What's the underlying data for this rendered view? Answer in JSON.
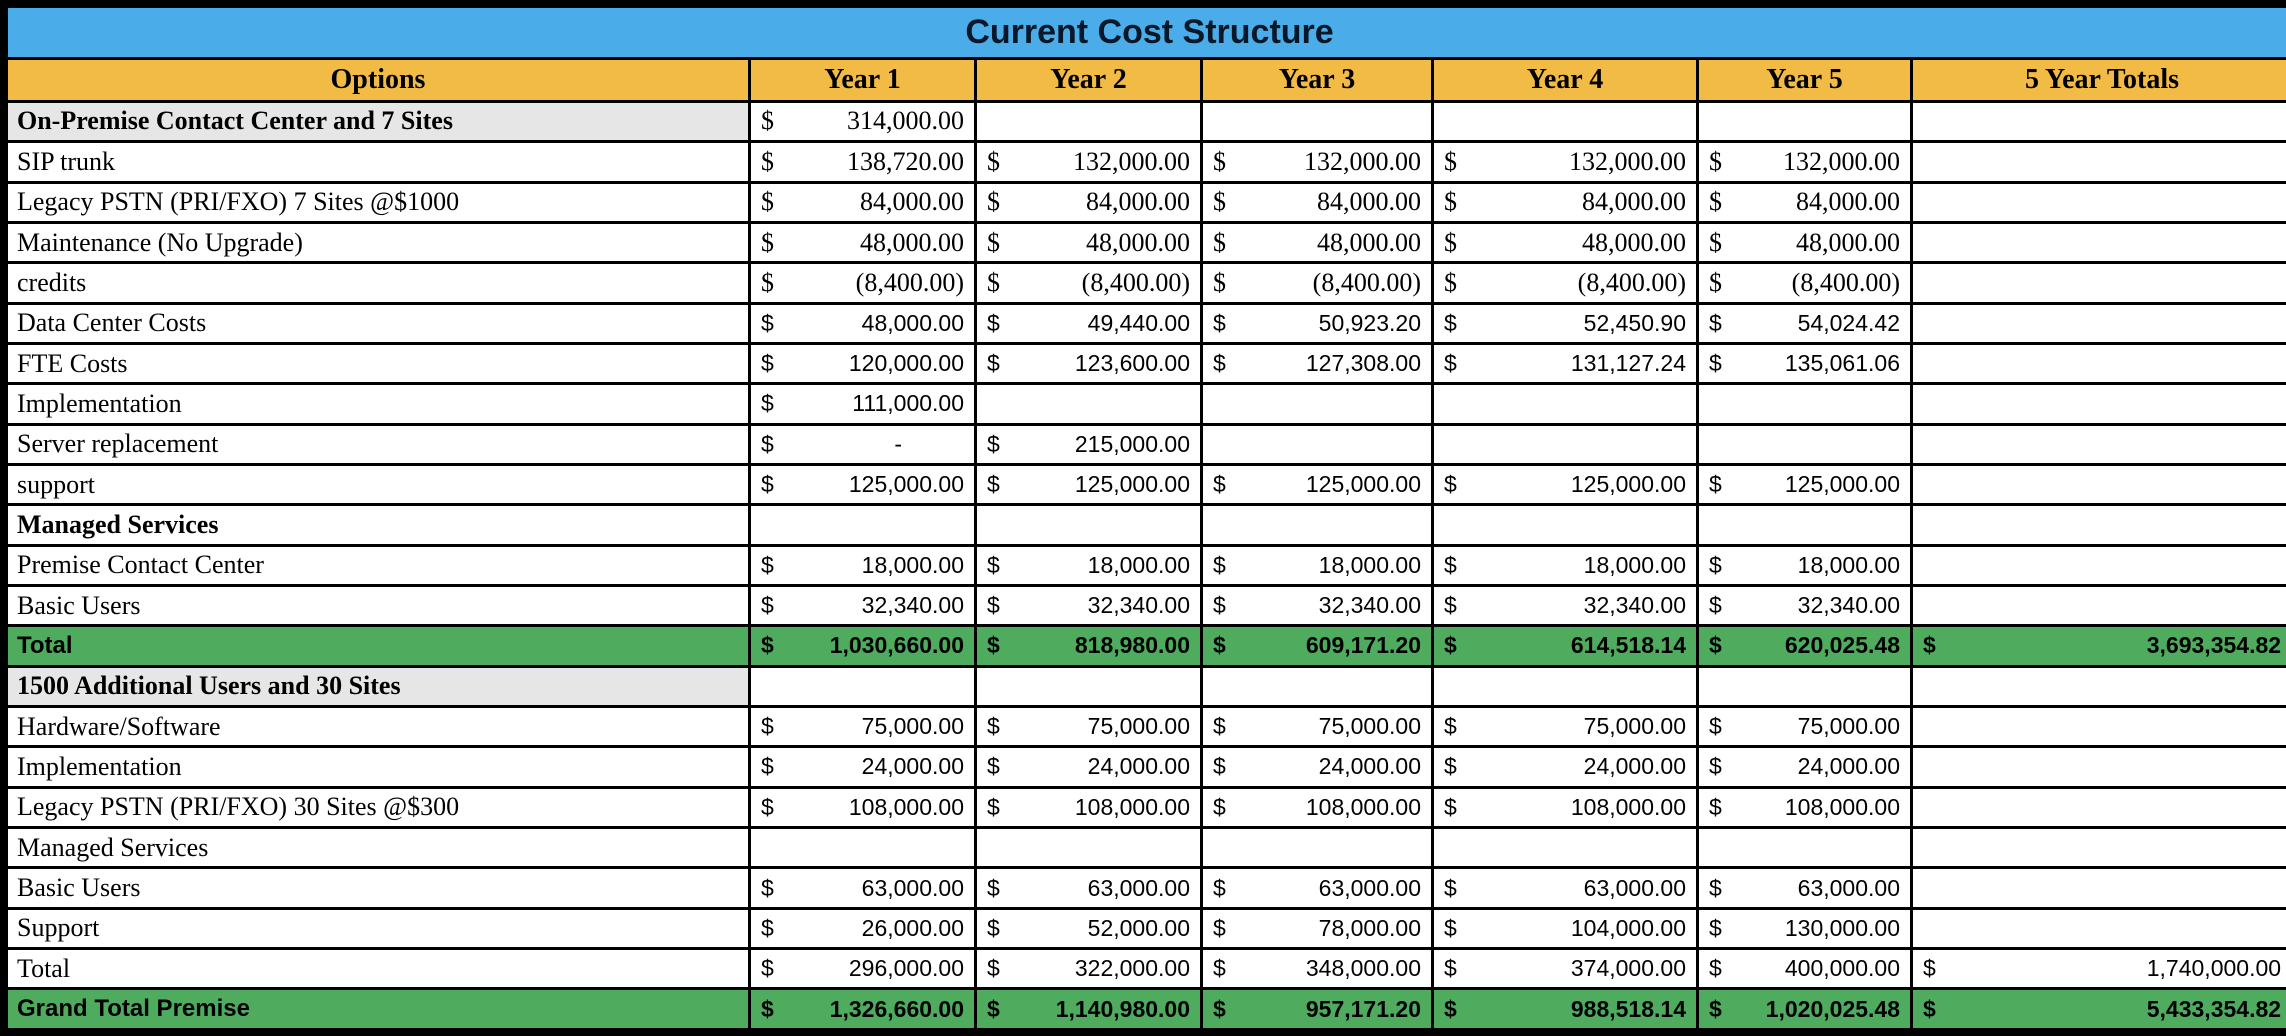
{
  "title": "Current Cost Structure",
  "columns": [
    "Options",
    "Year 1",
    "Year 2",
    "Year 3",
    "Year 4",
    "Year 5",
    "5 Year Totals"
  ],
  "currency_symbol": "$",
  "colors": {
    "title_bg": "#4AACE8",
    "header_bg": "#F2BB45",
    "section_bg": "#E6E6E6",
    "total_bg": "#4FAB5E",
    "border": "#000000"
  },
  "rows": [
    {
      "label": "On-Premise Contact Center and 7 Sites",
      "style": "section",
      "value_font": "serif",
      "values": [
        "314,000.00",
        "",
        "",
        "",
        "",
        ""
      ]
    },
    {
      "label": "SIP trunk",
      "style": "item",
      "value_font": "serif",
      "values": [
        "138,720.00",
        "132,000.00",
        "132,000.00",
        "132,000.00",
        "132,000.00",
        ""
      ]
    },
    {
      "label": "Legacy PSTN (PRI/FXO) 7 Sites @$1000",
      "style": "item",
      "value_font": "serif",
      "values": [
        "84,000.00",
        "84,000.00",
        "84,000.00",
        "84,000.00",
        "84,000.00",
        ""
      ]
    },
    {
      "label": "Maintenance (No Upgrade)",
      "style": "item",
      "value_font": "serif",
      "values": [
        "48,000.00",
        "48,000.00",
        "48,000.00",
        "48,000.00",
        "48,000.00",
        ""
      ]
    },
    {
      "label": "credits",
      "style": "item",
      "value_font": "serif",
      "values": [
        "(8,400.00)",
        "(8,400.00)",
        "(8,400.00)",
        "(8,400.00)",
        "(8,400.00)",
        ""
      ]
    },
    {
      "label": "Data Center Costs",
      "style": "item",
      "value_font": "sans",
      "values": [
        "48,000.00",
        "49,440.00",
        "50,923.20",
        "52,450.90",
        "54,024.42",
        ""
      ]
    },
    {
      "label": "FTE Costs",
      "style": "item",
      "value_font": "sans",
      "values": [
        "120,000.00",
        "123,600.00",
        "127,308.00",
        "131,127.24",
        "135,061.06",
        ""
      ]
    },
    {
      "label": "Implementation",
      "style": "item",
      "value_font": "sans",
      "values": [
        "111,000.00",
        "",
        "",
        "",
        "",
        ""
      ]
    },
    {
      "label": "Server replacement",
      "style": "item",
      "value_font": "sans",
      "values": [
        "-",
        "215,000.00",
        "",
        "",
        "",
        ""
      ]
    },
    {
      "label": "support",
      "style": "item",
      "value_font": "sans",
      "values": [
        "125,000.00",
        "125,000.00",
        "125,000.00",
        "125,000.00",
        "125,000.00",
        ""
      ]
    },
    {
      "label": "Managed Services",
      "style": "item",
      "label_bold": true,
      "value_font": "sans",
      "values": [
        "",
        "",
        "",
        "",
        "",
        ""
      ]
    },
    {
      "label": "Premise Contact Center",
      "style": "item",
      "value_font": "sans",
      "values": [
        "18,000.00",
        "18,000.00",
        "18,000.00",
        "18,000.00",
        "18,000.00",
        ""
      ]
    },
    {
      "label": "Basic Users",
      "style": "item",
      "value_font": "sans",
      "values": [
        "32,340.00",
        "32,340.00",
        "32,340.00",
        "32,340.00",
        "32,340.00",
        ""
      ]
    },
    {
      "label": "Total",
      "style": "green-total",
      "value_font": "sans",
      "values": [
        "1,030,660.00",
        "818,980.00",
        "609,171.20",
        "614,518.14",
        "620,025.48",
        "3,693,354.82"
      ]
    },
    {
      "label": "1500 Additional Users and 30 Sites",
      "style": "section",
      "value_font": "sans",
      "values": [
        "",
        "",
        "",
        "",
        "",
        ""
      ]
    },
    {
      "label": "Hardware/Software",
      "style": "item",
      "value_font": "sans",
      "values": [
        "75,000.00",
        "75,000.00",
        "75,000.00",
        "75,000.00",
        "75,000.00",
        ""
      ]
    },
    {
      "label": "Implementation",
      "style": "item",
      "value_font": "sans",
      "values": [
        "24,000.00",
        "24,000.00",
        "24,000.00",
        "24,000.00",
        "24,000.00",
        ""
      ]
    },
    {
      "label": "Legacy PSTN (PRI/FXO) 30 Sites @$300",
      "style": "item",
      "value_font": "sans",
      "values": [
        "108,000.00",
        "108,000.00",
        "108,000.00",
        "108,000.00",
        "108,000.00",
        ""
      ]
    },
    {
      "label": "Managed Services",
      "style": "item",
      "value_font": "sans",
      "values": [
        "",
        "",
        "",
        "",
        "",
        ""
      ]
    },
    {
      "label": "Basic Users",
      "style": "item",
      "value_font": "sans",
      "values": [
        "63,000.00",
        "63,000.00",
        "63,000.00",
        "63,000.00",
        "63,000.00",
        ""
      ]
    },
    {
      "label": "Support",
      "style": "item",
      "value_font": "sans",
      "values": [
        "26,000.00",
        "52,000.00",
        "78,000.00",
        "104,000.00",
        "130,000.00",
        ""
      ]
    },
    {
      "label": "Total",
      "style": "item",
      "value_font": "sans",
      "values": [
        "296,000.00",
        "322,000.00",
        "348,000.00",
        "374,000.00",
        "400,000.00",
        "1,740,000.00"
      ]
    },
    {
      "label": "Grand Total Premise",
      "style": "green-total",
      "value_font": "sans",
      "values": [
        "1,326,660.00",
        "1,140,980.00",
        "957,171.20",
        "988,518.14",
        "1,020,025.48",
        "5,433,354.82"
      ]
    }
  ]
}
